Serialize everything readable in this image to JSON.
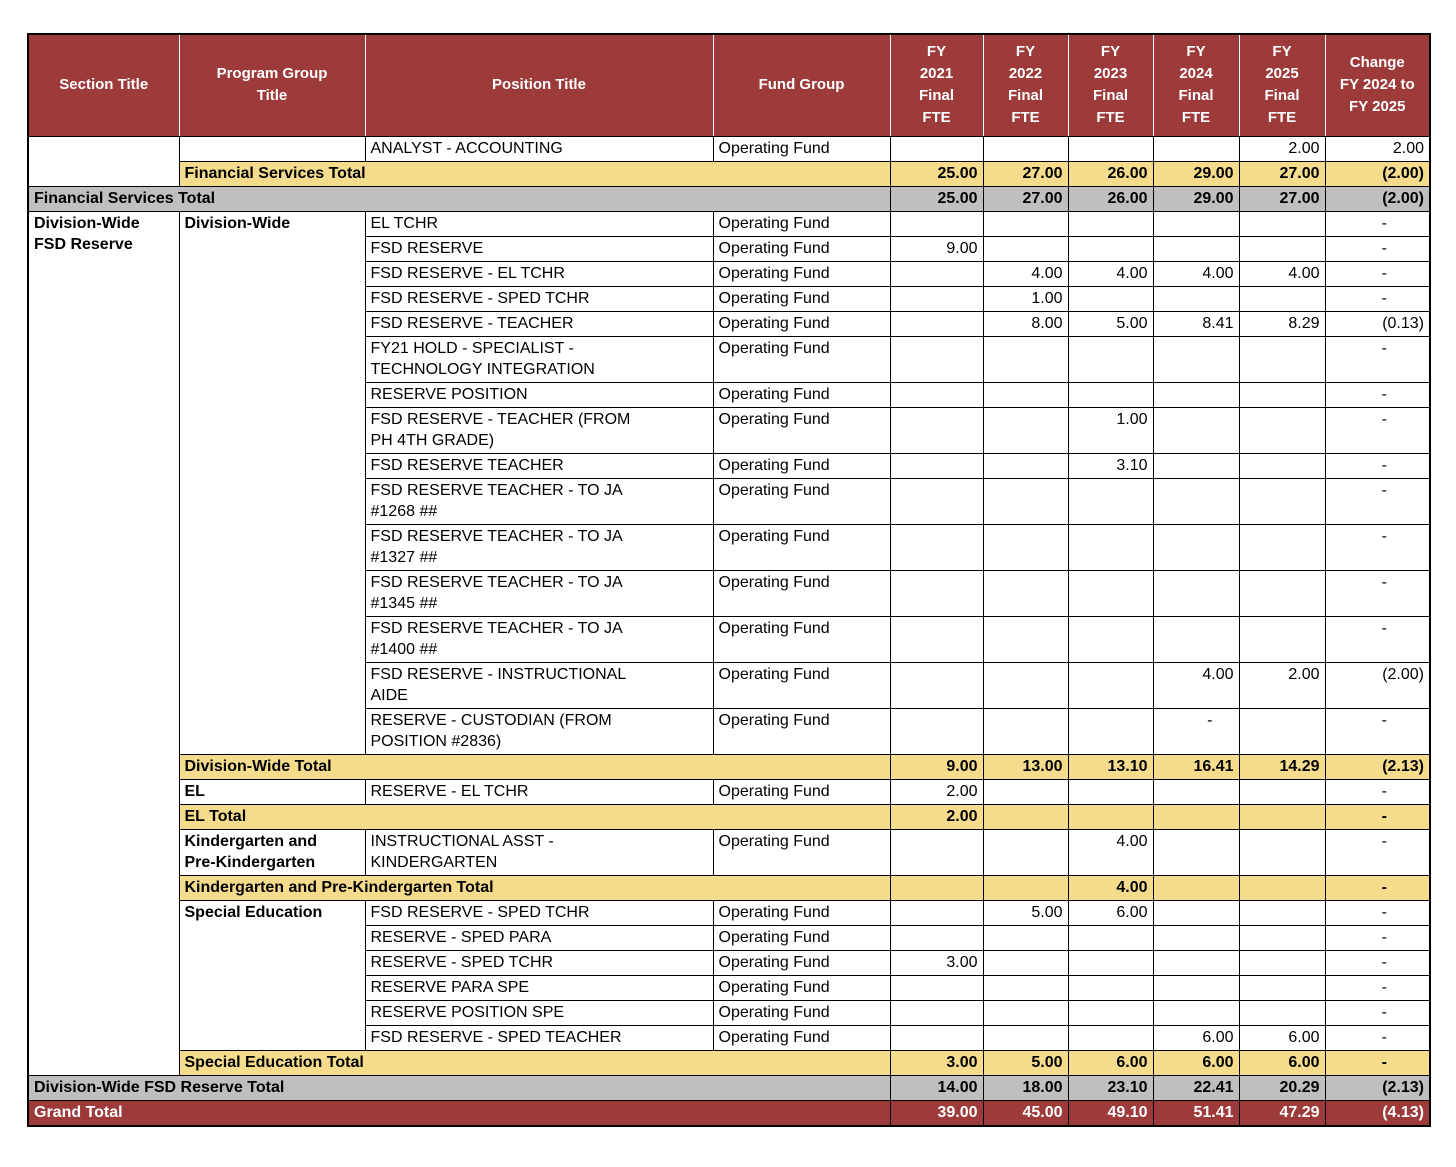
{
  "colors": {
    "header_bg": "#9C3B39",
    "header_text": "#FFFFFF",
    "subtotal_bg": "#F4DC8C",
    "section_total_bg": "#BFBFBF",
    "grand_total_bg": "#9C3B39",
    "grand_total_text": "#FFFFFF",
    "border": "#000000"
  },
  "table": {
    "headers": [
      "Section Title",
      "Program Group\nTitle",
      "Position Title",
      "Fund Group",
      "FY\n2021\nFinal\nFTE",
      "FY\n2022\nFinal\nFTE",
      "FY\n2023\nFinal\nFTE",
      "FY\n2024\nFinal\nFTE",
      "FY\n2025\nFinal\nFTE",
      "Change\nFY 2024 to\nFY 2025"
    ],
    "rows": [
      {
        "kind": "position",
        "section": {
          "text": "",
          "rowspan": 2
        },
        "program": {
          "text": "",
          "rowspan": 1
        },
        "position": "ANALYST - ACCOUNTING",
        "fund": "Operating Fund",
        "values": [
          "",
          "",
          "",
          "",
          "2.00",
          "2.00"
        ]
      },
      {
        "kind": "program-total",
        "label": "Financial Services Total",
        "values": [
          "25.00",
          "27.00",
          "26.00",
          "29.00",
          "27.00",
          "(2.00)"
        ]
      },
      {
        "kind": "section-total",
        "label": "Financial Services Total",
        "values": [
          "25.00",
          "27.00",
          "26.00",
          "29.00",
          "27.00",
          "(2.00)"
        ]
      },
      {
        "kind": "position",
        "section": {
          "text": "Division-Wide\nFSD Reserve",
          "rowspan": 27
        },
        "program": {
          "text": "Division-Wide",
          "rowspan": 15
        },
        "position": "EL TCHR",
        "fund": "Operating Fund",
        "values": [
          "",
          "",
          "",
          "",
          "",
          "-"
        ]
      },
      {
        "kind": "position",
        "position": "FSD RESERVE",
        "fund": "Operating Fund",
        "values": [
          "9.00",
          "",
          "",
          "",
          "",
          "-"
        ]
      },
      {
        "kind": "position",
        "position": "FSD RESERVE - EL TCHR",
        "fund": "Operating Fund",
        "values": [
          "",
          "4.00",
          "4.00",
          "4.00",
          "4.00",
          "-"
        ]
      },
      {
        "kind": "position",
        "position": "FSD RESERVE - SPED TCHR",
        "fund": "Operating Fund",
        "values": [
          "",
          "1.00",
          "",
          "",
          "",
          "-"
        ]
      },
      {
        "kind": "position",
        "position": "FSD RESERVE - TEACHER",
        "fund": "Operating Fund",
        "values": [
          "",
          "8.00",
          "5.00",
          "8.41",
          "8.29",
          "(0.13)"
        ]
      },
      {
        "kind": "position",
        "position": "FY21 HOLD - SPECIALIST -\nTECHNOLOGY INTEGRATION",
        "fund": "Operating Fund",
        "values": [
          "",
          "",
          "",
          "",
          "",
          "-"
        ]
      },
      {
        "kind": "position",
        "position": "RESERVE POSITION",
        "fund": "Operating Fund",
        "values": [
          "",
          "",
          "",
          "",
          "",
          "-"
        ]
      },
      {
        "kind": "position",
        "position": "FSD RESERVE - TEACHER (FROM\nPH 4TH GRADE)",
        "fund": "Operating Fund",
        "values": [
          "",
          "",
          "1.00",
          "",
          "",
          "-"
        ]
      },
      {
        "kind": "position",
        "position": "FSD RESERVE TEACHER",
        "fund": "Operating Fund",
        "values": [
          "",
          "",
          "3.10",
          "",
          "",
          "-"
        ]
      },
      {
        "kind": "position",
        "position": "FSD RESERVE TEACHER - TO JA\n#1268 ##",
        "fund": "Operating Fund",
        "values": [
          "",
          "",
          "",
          "",
          "",
          "-"
        ]
      },
      {
        "kind": "position",
        "position": "FSD RESERVE TEACHER - TO JA\n#1327 ##",
        "fund": "Operating Fund",
        "values": [
          "",
          "",
          "",
          "",
          "",
          "-"
        ]
      },
      {
        "kind": "position",
        "position": "FSD RESERVE TEACHER - TO JA\n#1345 ##",
        "fund": "Operating Fund",
        "values": [
          "",
          "",
          "",
          "",
          "",
          "-"
        ]
      },
      {
        "kind": "position",
        "position": "FSD RESERVE TEACHER - TO JA\n#1400 ##",
        "fund": "Operating Fund",
        "values": [
          "",
          "",
          "",
          "",
          "",
          "-"
        ]
      },
      {
        "kind": "position",
        "position": "FSD RESERVE - INSTRUCTIONAL\nAIDE",
        "fund": "Operating Fund",
        "values": [
          "",
          "",
          "",
          "4.00",
          "2.00",
          "(2.00)"
        ]
      },
      {
        "kind": "position",
        "position": "RESERVE - CUSTODIAN (FROM\nPOSITION #2836)",
        "fund": "Operating Fund",
        "values": [
          "",
          "",
          "",
          "-",
          "",
          "-"
        ]
      },
      {
        "kind": "program-total",
        "label": "Division-Wide Total",
        "values": [
          "9.00",
          "13.00",
          "13.10",
          "16.41",
          "14.29",
          "(2.13)"
        ]
      },
      {
        "kind": "position",
        "program": {
          "text": "EL",
          "rowspan": 1
        },
        "position": "RESERVE - EL TCHR",
        "fund": "Operating Fund",
        "values": [
          "2.00",
          "",
          "",
          "",
          "",
          "-"
        ]
      },
      {
        "kind": "program-total",
        "label": "EL Total",
        "values": [
          "2.00",
          "",
          "",
          "",
          "",
          "-"
        ]
      },
      {
        "kind": "position",
        "program": {
          "text": "Kindergarten and\nPre-Kindergarten",
          "rowspan": 1
        },
        "position": "INSTRUCTIONAL ASST -\nKINDERGARTEN",
        "fund": "Operating Fund",
        "values": [
          "",
          "",
          "4.00",
          "",
          "",
          "-"
        ]
      },
      {
        "kind": "program-total",
        "label": "Kindergarten and Pre-Kindergarten Total",
        "values": [
          "",
          "",
          "4.00",
          "",
          "",
          "-"
        ]
      },
      {
        "kind": "position",
        "program": {
          "text": "Special Education",
          "rowspan": 6
        },
        "position": "FSD RESERVE - SPED TCHR",
        "fund": "Operating Fund",
        "values": [
          "",
          "5.00",
          "6.00",
          "",
          "",
          "-"
        ]
      },
      {
        "kind": "position",
        "position": "RESERVE - SPED PARA",
        "fund": "Operating Fund",
        "values": [
          "",
          "",
          "",
          "",
          "",
          "-"
        ]
      },
      {
        "kind": "position",
        "position": "RESERVE - SPED TCHR",
        "fund": "Operating Fund",
        "values": [
          "3.00",
          "",
          "",
          "",
          "",
          "-"
        ]
      },
      {
        "kind": "position",
        "position": "RESERVE PARA SPE",
        "fund": "Operating Fund",
        "values": [
          "",
          "",
          "",
          "",
          "",
          "-"
        ]
      },
      {
        "kind": "position",
        "position": "RESERVE POSITION SPE",
        "fund": "Operating Fund",
        "values": [
          "",
          "",
          "",
          "",
          "",
          "-"
        ]
      },
      {
        "kind": "position",
        "position": "FSD RESERVE - SPED TEACHER",
        "fund": "Operating Fund",
        "values": [
          "",
          "",
          "",
          "6.00",
          "6.00",
          "-"
        ]
      },
      {
        "kind": "program-total",
        "label": "Special Education Total",
        "values": [
          "3.00",
          "5.00",
          "6.00",
          "6.00",
          "6.00",
          "-"
        ]
      },
      {
        "kind": "section-total",
        "label": "Division-Wide FSD Reserve Total",
        "values": [
          "14.00",
          "18.00",
          "23.10",
          "22.41",
          "20.29",
          "(2.13)"
        ]
      },
      {
        "kind": "grand-total",
        "label": "Grand Total",
        "values": [
          "39.00",
          "45.00",
          "49.10",
          "51.41",
          "47.29",
          "(4.13)"
        ]
      }
    ]
  }
}
